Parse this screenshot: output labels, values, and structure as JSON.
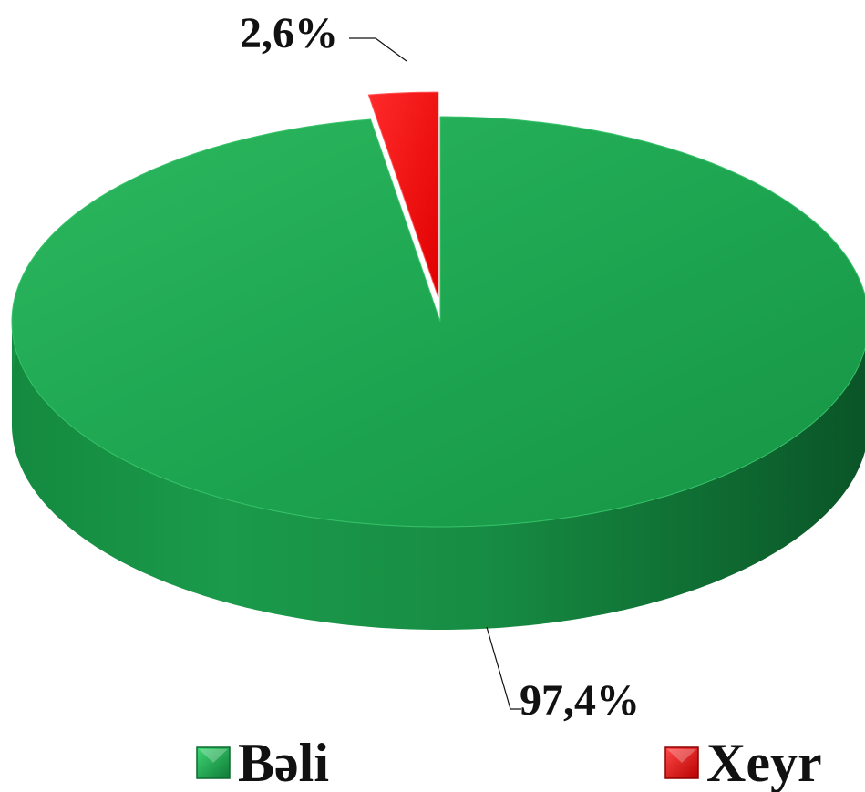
{
  "chart_data": {
    "type": "pie",
    "style": "3d-exploded",
    "categories": [
      "Bəli",
      "Xeyr"
    ],
    "values": [
      97.4,
      2.6
    ],
    "data_labels": [
      "97,4%",
      "2,6%"
    ],
    "colors": [
      "#1fa54f",
      "#ff0000"
    ],
    "legend": {
      "position": "bottom",
      "entries": [
        "Bəli",
        "Xeyr"
      ]
    },
    "title": ""
  }
}
